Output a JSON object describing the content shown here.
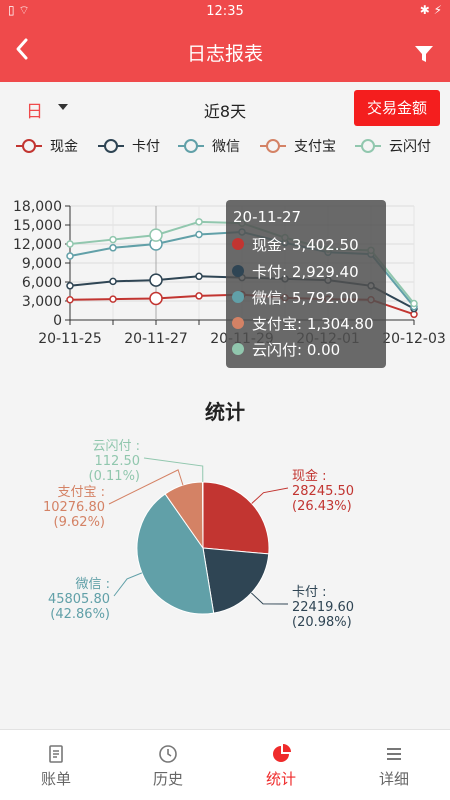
{
  "status_bar": {
    "time": "12:35",
    "left_icons": "▯ ⌔",
    "right_icons": "✱ ⚡"
  },
  "header": {
    "title": "日志报表",
    "back_icon": "chevron-left-icon",
    "filter_icon": "filter-icon"
  },
  "controls": {
    "period": "日",
    "range": "近8天",
    "transaction_amount_button": "交易金额"
  },
  "colors": {
    "accent": "#ef4a4b",
    "cash": "#c23531",
    "card": "#2f4554",
    "wechat": "#61a0a8",
    "alipay": "#d48265",
    "unionpay": "#91c7ae"
  },
  "legend": [
    "现金",
    "卡付",
    "微信",
    "支付宝",
    "云闪付"
  ],
  "chart_data": [
    {
      "type": "line",
      "x": [
        "20-11-25",
        "20-11-26",
        "20-11-27",
        "20-11-28",
        "20-11-29",
        "20-11-30",
        "20-12-01",
        "20-12-02",
        "20-12-03"
      ],
      "xticks": [
        "20-11-25",
        "20-11-27",
        "20-11-29",
        "20-12-01",
        "20-12-03"
      ],
      "ylim": [
        0,
        18000
      ],
      "yticks": [
        "18,000",
        "15,000",
        "12,000",
        "9,000",
        "6,000",
        "3,000",
        "0"
      ],
      "grid": true,
      "series": [
        {
          "name": "现金",
          "values": [
            3200,
            3300,
            3402.5,
            3800,
            4000,
            3500,
            3300,
            3200,
            900
          ]
        },
        {
          "name": "卡付",
          "values": [
            5400,
            6100,
            6300,
            6900,
            6700,
            6500,
            6300,
            5400,
            1800
          ]
        },
        {
          "name": "微信",
          "values": [
            10100,
            11400,
            12000,
            13500,
            13900,
            12200,
            10700,
            10400,
            2100
          ]
        },
        {
          "name": "支付宝",
          "values": [
            0,
            0,
            1304.8,
            0,
            0,
            0,
            0,
            0,
            0
          ]
        },
        {
          "name": "云闪付",
          "values": [
            12000,
            12700,
            13400,
            15500,
            15300,
            13000,
            11200,
            11000,
            2600
          ]
        }
      ],
      "tooltip": {
        "title": "20-11-27",
        "rows": [
          "现金: 3,402.50",
          "卡付: 2,929.40",
          "微信: 5,792.00",
          "支付宝: 1,304.80",
          "云闪付: 0.00"
        ]
      }
    },
    {
      "type": "pie",
      "title": "统计",
      "slices": [
        {
          "name": "现金",
          "value": 28245.5,
          "percent": 26.43,
          "label_value": "28245.50",
          "label_percent": "(26.43%)"
        },
        {
          "name": "卡付",
          "value": 22419.6,
          "percent": 20.98,
          "label_value": "22419.60",
          "label_percent": "(20.98%)"
        },
        {
          "name": "微信",
          "value": 45805.8,
          "percent": 42.86,
          "label_value": "45805.80",
          "label_percent": "(42.86%)"
        },
        {
          "name": "支付宝",
          "value": 10276.8,
          "percent": 9.62,
          "label_value": "10276.80",
          "label_percent": "(9.62%)"
        },
        {
          "name": "云闪付",
          "value": 112.5,
          "percent": 0.11,
          "label_value": "112.50",
          "label_percent": "(0.11%)"
        }
      ]
    }
  ],
  "tabbar": [
    {
      "label": "账单",
      "icon": "bill-icon"
    },
    {
      "label": "历史",
      "icon": "clock-icon"
    },
    {
      "label": "统计",
      "icon": "pie-chart-icon",
      "active": true
    },
    {
      "label": "详细",
      "icon": "list-icon"
    }
  ]
}
